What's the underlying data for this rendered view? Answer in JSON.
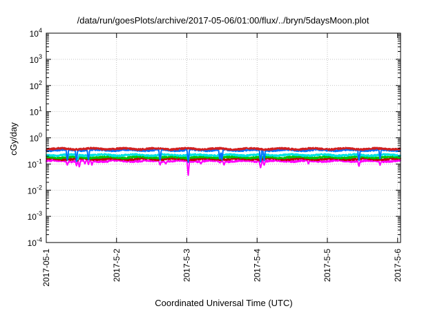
{
  "chart_data": {
    "type": "line",
    "title": "/data/run/goesPlots/archive/2017-05-06/01:00/flux/../bryn/5daysMoon.plot",
    "xlabel": "Coordinated Universal Time (UTC)",
    "ylabel": "cGy/day",
    "y_scale": "log",
    "ylim": [
      0.0001,
      10000
    ],
    "xlim": [
      "2017-05-01T00:00",
      "2017-05-06T01:00"
    ],
    "y_ticks": [
      {
        "base": "10",
        "exp": "-4",
        "value": 0.0001
      },
      {
        "base": "10",
        "exp": "-3",
        "value": 0.001
      },
      {
        "base": "10",
        "exp": "-2",
        "value": 0.01
      },
      {
        "base": "10",
        "exp": "-1",
        "value": 0.1
      },
      {
        "base": "10",
        "exp": "0",
        "value": 1
      },
      {
        "base": "10",
        "exp": "1",
        "value": 10
      },
      {
        "base": "10",
        "exp": "2",
        "value": 100
      },
      {
        "base": "10",
        "exp": "3",
        "value": 1000
      },
      {
        "base": "10",
        "exp": "4",
        "value": 10000
      }
    ],
    "x_ticks": [
      {
        "label": "2017-05-1",
        "value": "2017-05-01"
      },
      {
        "label": "2017-5-2",
        "value": "2017-05-02"
      },
      {
        "label": "2017-5-3",
        "value": "2017-05-03"
      },
      {
        "label": "2017-5-4",
        "value": "2017-05-04"
      },
      {
        "label": "2017-5-5",
        "value": "2017-05-05"
      },
      {
        "label": "2017-5-6",
        "value": "2017-05-06"
      }
    ],
    "grid": true,
    "legend": "none",
    "series": [
      {
        "color": "#ff00ff",
        "level": 0.13,
        "dips": [
          [
            0.3,
            0.09
          ],
          [
            0.43,
            0.085
          ],
          [
            0.47,
            0.075
          ],
          [
            0.55,
            0.1
          ],
          [
            0.6,
            0.095
          ],
          [
            0.65,
            0.09
          ],
          [
            1.62,
            0.09
          ],
          [
            1.7,
            0.1
          ],
          [
            2.02,
            0.035
          ],
          [
            2.2,
            0.1
          ],
          [
            2.47,
            0.11
          ],
          [
            2.53,
            0.09
          ],
          [
            3.05,
            0.07
          ],
          [
            3.1,
            0.09
          ],
          [
            3.73,
            0.1
          ],
          [
            4.45,
            0.08
          ],
          [
            4.75,
            0.09
          ]
        ]
      },
      {
        "color": "#c00000",
        "level": 0.155,
        "dips": [
          [
            0.45,
            0.13
          ],
          [
            2.02,
            0.12
          ],
          [
            3.05,
            0.12
          ]
        ]
      },
      {
        "color": "#00c000",
        "level": 0.18,
        "dips": [
          [
            0.45,
            0.15
          ],
          [
            2.02,
            0.14
          ],
          [
            3.05,
            0.14
          ]
        ]
      },
      {
        "color": "#00e0e0",
        "level": 0.22,
        "dips": [
          [
            0.3,
            0.15
          ],
          [
            0.45,
            0.14
          ],
          [
            1.62,
            0.15
          ],
          [
            2.02,
            0.13
          ],
          [
            2.47,
            0.16
          ],
          [
            3.05,
            0.12
          ],
          [
            4.45,
            0.14
          ]
        ]
      },
      {
        "color": "#0070ff",
        "level": 0.34,
        "dips": [
          [
            0.3,
            0.13
          ],
          [
            0.43,
            0.12
          ],
          [
            0.6,
            0.14
          ],
          [
            1.62,
            0.13
          ],
          [
            2.02,
            0.11
          ],
          [
            2.47,
            0.15
          ],
          [
            2.5,
            0.14
          ],
          [
            3.05,
            0.11
          ],
          [
            3.1,
            0.13
          ],
          [
            4.45,
            0.13
          ],
          [
            4.75,
            0.16
          ]
        ]
      },
      {
        "color": "#d02020",
        "level": 0.38,
        "dips": []
      }
    ]
  }
}
